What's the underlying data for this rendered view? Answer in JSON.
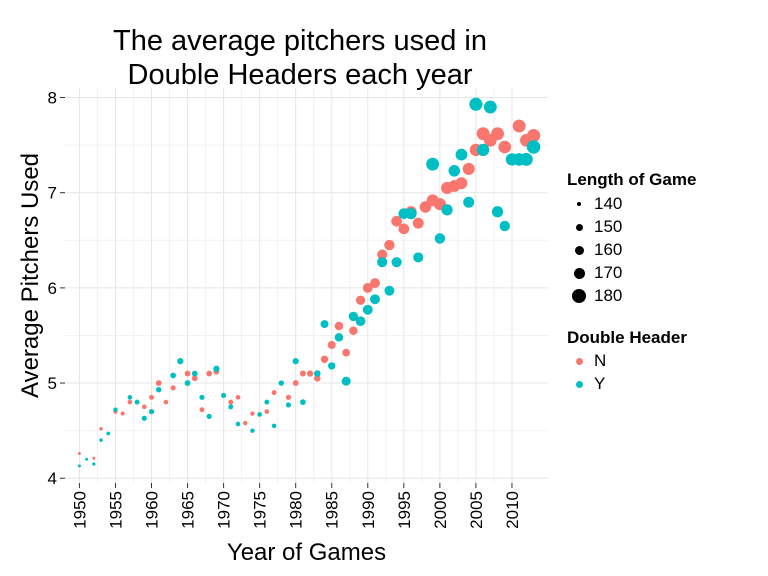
{
  "chart_data": {
    "type": "scatter",
    "title_lines": [
      "The average pitchers used in",
      "Double Headers each year"
    ],
    "xlabel": "Year of Games",
    "ylabel": "Average Pitchers Used",
    "xlim": [
      1948,
      2015
    ],
    "ylim": [
      3.95,
      8.1
    ],
    "x_ticks": [
      1950,
      1955,
      1960,
      1965,
      1970,
      1975,
      1980,
      1985,
      1990,
      1995,
      2000,
      2005,
      2010
    ],
    "x_tick_labels": [
      "1950",
      "1955",
      "1960",
      "1965",
      "1970",
      "1975",
      "1980",
      "1985",
      "1990",
      "1995",
      "2000",
      "2005",
      "2010"
    ],
    "y_ticks": [
      4,
      5,
      6,
      7,
      8
    ],
    "y_tick_labels": [
      "4",
      "5",
      "6",
      "7",
      "8"
    ],
    "grid": true,
    "size_legend": {
      "title": "Length of Game",
      "values": [
        140,
        150,
        160,
        170,
        180
      ],
      "labels": [
        "140",
        "150",
        "160",
        "170",
        "180"
      ]
    },
    "color_legend": {
      "title": "Double Header",
      "entries": [
        {
          "label": "N",
          "color": "#f8766d"
        },
        {
          "label": "Y",
          "color": "#00bfc4"
        }
      ]
    },
    "legend_position": "right",
    "series": [
      {
        "name": "N",
        "color": "#f8766d",
        "points": [
          {
            "x": 1950,
            "y": 4.26,
            "size": 140
          },
          {
            "x": 1952,
            "y": 4.21,
            "size": 140
          },
          {
            "x": 1953,
            "y": 4.52,
            "size": 142
          },
          {
            "x": 1955,
            "y": 4.7,
            "size": 145
          },
          {
            "x": 1956,
            "y": 4.68,
            "size": 144
          },
          {
            "x": 1957,
            "y": 4.8,
            "size": 146
          },
          {
            "x": 1959,
            "y": 4.75,
            "size": 146
          },
          {
            "x": 1960,
            "y": 4.85,
            "size": 147
          },
          {
            "x": 1961,
            "y": 5.0,
            "size": 150
          },
          {
            "x": 1962,
            "y": 4.8,
            "size": 146
          },
          {
            "x": 1963,
            "y": 4.95,
            "size": 148
          },
          {
            "x": 1965,
            "y": 5.1,
            "size": 150
          },
          {
            "x": 1966,
            "y": 5.05,
            "size": 150
          },
          {
            "x": 1967,
            "y": 4.72,
            "size": 147
          },
          {
            "x": 1968,
            "y": 5.1,
            "size": 150
          },
          {
            "x": 1969,
            "y": 5.12,
            "size": 150
          },
          {
            "x": 1971,
            "y": 4.8,
            "size": 147
          },
          {
            "x": 1972,
            "y": 4.85,
            "size": 146
          },
          {
            "x": 1973,
            "y": 4.58,
            "size": 145
          },
          {
            "x": 1974,
            "y": 4.68,
            "size": 145
          },
          {
            "x": 1975,
            "y": 4.67,
            "size": 145
          },
          {
            "x": 1976,
            "y": 4.7,
            "size": 146
          },
          {
            "x": 1977,
            "y": 4.9,
            "size": 147
          },
          {
            "x": 1979,
            "y": 4.85,
            "size": 148
          },
          {
            "x": 1980,
            "y": 5.0,
            "size": 150
          },
          {
            "x": 1981,
            "y": 5.1,
            "size": 151
          },
          {
            "x": 1982,
            "y": 5.1,
            "size": 152
          },
          {
            "x": 1983,
            "y": 5.05,
            "size": 153
          },
          {
            "x": 1984,
            "y": 5.25,
            "size": 156
          },
          {
            "x": 1985,
            "y": 5.4,
            "size": 158
          },
          {
            "x": 1986,
            "y": 5.6,
            "size": 160
          },
          {
            "x": 1987,
            "y": 5.32,
            "size": 157
          },
          {
            "x": 1988,
            "y": 5.55,
            "size": 160
          },
          {
            "x": 1989,
            "y": 5.87,
            "size": 163
          },
          {
            "x": 1990,
            "y": 6.0,
            "size": 165
          },
          {
            "x": 1991,
            "y": 6.05,
            "size": 165
          },
          {
            "x": 1992,
            "y": 6.35,
            "size": 166
          },
          {
            "x": 1993,
            "y": 6.45,
            "size": 167
          },
          {
            "x": 1994,
            "y": 6.7,
            "size": 168
          },
          {
            "x": 1995,
            "y": 6.62,
            "size": 168
          },
          {
            "x": 1996,
            "y": 6.8,
            "size": 170
          },
          {
            "x": 1997,
            "y": 6.68,
            "size": 169
          },
          {
            "x": 1998,
            "y": 6.85,
            "size": 171
          },
          {
            "x": 1999,
            "y": 6.92,
            "size": 172
          },
          {
            "x": 2000,
            "y": 6.88,
            "size": 173
          },
          {
            "x": 2001,
            "y": 7.05,
            "size": 173
          },
          {
            "x": 2002,
            "y": 7.07,
            "size": 172
          },
          {
            "x": 2003,
            "y": 7.1,
            "size": 172
          },
          {
            "x": 2004,
            "y": 7.25,
            "size": 173
          },
          {
            "x": 2005,
            "y": 7.45,
            "size": 174
          },
          {
            "x": 2006,
            "y": 7.62,
            "size": 176
          },
          {
            "x": 2007,
            "y": 7.55,
            "size": 175
          },
          {
            "x": 2008,
            "y": 7.62,
            "size": 176
          },
          {
            "x": 2009,
            "y": 7.48,
            "size": 175
          },
          {
            "x": 2011,
            "y": 7.7,
            "size": 176
          },
          {
            "x": 2012,
            "y": 7.55,
            "size": 175
          },
          {
            "x": 2013,
            "y": 7.6,
            "size": 177
          }
        ]
      },
      {
        "name": "Y",
        "color": "#00bfc4",
        "points": [
          {
            "x": 1950,
            "y": 4.13,
            "size": 140
          },
          {
            "x": 1951,
            "y": 4.2,
            "size": 140
          },
          {
            "x": 1952,
            "y": 4.15,
            "size": 141
          },
          {
            "x": 1953,
            "y": 4.4,
            "size": 142
          },
          {
            "x": 1954,
            "y": 4.47,
            "size": 143
          },
          {
            "x": 1955,
            "y": 4.72,
            "size": 145
          },
          {
            "x": 1957,
            "y": 4.85,
            "size": 146
          },
          {
            "x": 1958,
            "y": 4.8,
            "size": 147
          },
          {
            "x": 1959,
            "y": 4.63,
            "size": 148
          },
          {
            "x": 1960,
            "y": 4.7,
            "size": 148
          },
          {
            "x": 1961,
            "y": 4.93,
            "size": 149
          },
          {
            "x": 1963,
            "y": 5.08,
            "size": 150
          },
          {
            "x": 1964,
            "y": 5.23,
            "size": 152
          },
          {
            "x": 1965,
            "y": 5.0,
            "size": 150
          },
          {
            "x": 1966,
            "y": 5.1,
            "size": 150
          },
          {
            "x": 1967,
            "y": 4.85,
            "size": 148
          },
          {
            "x": 1968,
            "y": 4.65,
            "size": 148
          },
          {
            "x": 1969,
            "y": 5.15,
            "size": 152
          },
          {
            "x": 1970,
            "y": 4.87,
            "size": 148
          },
          {
            "x": 1971,
            "y": 4.75,
            "size": 147
          },
          {
            "x": 1972,
            "y": 4.57,
            "size": 146
          },
          {
            "x": 1974,
            "y": 4.5,
            "size": 145
          },
          {
            "x": 1975,
            "y": 4.67,
            "size": 146
          },
          {
            "x": 1976,
            "y": 4.8,
            "size": 147
          },
          {
            "x": 1977,
            "y": 4.55,
            "size": 146
          },
          {
            "x": 1978,
            "y": 5.0,
            "size": 149
          },
          {
            "x": 1979,
            "y": 4.77,
            "size": 148
          },
          {
            "x": 1980,
            "y": 5.23,
            "size": 152
          },
          {
            "x": 1981,
            "y": 4.8,
            "size": 150
          },
          {
            "x": 1983,
            "y": 5.1,
            "size": 153
          },
          {
            "x": 1984,
            "y": 5.62,
            "size": 158
          },
          {
            "x": 1985,
            "y": 5.18,
            "size": 156
          },
          {
            "x": 1986,
            "y": 5.48,
            "size": 160
          },
          {
            "x": 1987,
            "y": 5.02,
            "size": 162
          },
          {
            "x": 1988,
            "y": 5.7,
            "size": 163
          },
          {
            "x": 1989,
            "y": 5.65,
            "size": 164
          },
          {
            "x": 1990,
            "y": 5.77,
            "size": 165
          },
          {
            "x": 1991,
            "y": 5.88,
            "size": 165
          },
          {
            "x": 1992,
            "y": 6.27,
            "size": 166
          },
          {
            "x": 1993,
            "y": 5.97,
            "size": 165
          },
          {
            "x": 1994,
            "y": 6.27,
            "size": 166
          },
          {
            "x": 1995,
            "y": 6.78,
            "size": 168
          },
          {
            "x": 1996,
            "y": 6.78,
            "size": 170
          },
          {
            "x": 1997,
            "y": 6.32,
            "size": 166
          },
          {
            "x": 1999,
            "y": 7.3,
            "size": 176
          },
          {
            "x": 2000,
            "y": 6.52,
            "size": 167
          },
          {
            "x": 2001,
            "y": 6.82,
            "size": 170
          },
          {
            "x": 2002,
            "y": 7.23,
            "size": 171
          },
          {
            "x": 2003,
            "y": 7.4,
            "size": 172
          },
          {
            "x": 2004,
            "y": 6.9,
            "size": 169
          },
          {
            "x": 2005,
            "y": 7.93,
            "size": 177
          },
          {
            "x": 2006,
            "y": 7.45,
            "size": 174
          },
          {
            "x": 2007,
            "y": 7.9,
            "size": 176
          },
          {
            "x": 2008,
            "y": 6.8,
            "size": 170
          },
          {
            "x": 2009,
            "y": 6.65,
            "size": 167
          },
          {
            "x": 2010,
            "y": 7.35,
            "size": 174
          },
          {
            "x": 2011,
            "y": 7.35,
            "size": 175
          },
          {
            "x": 2012,
            "y": 7.35,
            "size": 176
          },
          {
            "x": 2013,
            "y": 7.48,
            "size": 178
          }
        ]
      }
    ]
  }
}
